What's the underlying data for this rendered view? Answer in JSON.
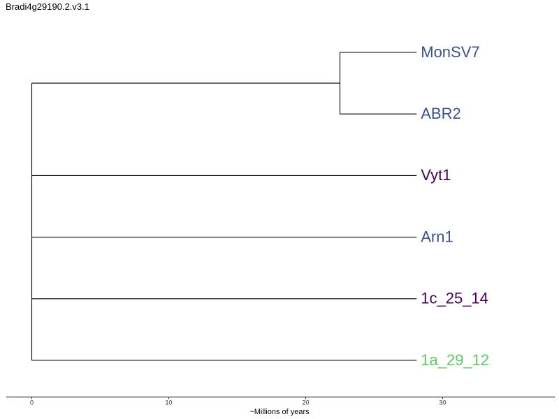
{
  "title": "Bradi4g29190.2.v3.1",
  "colors": {
    "blue": "#3b528b",
    "purple": "#440154",
    "green": "#5ec962",
    "branch": "#000000"
  },
  "chart_data": {
    "type": "dendrogram",
    "xlabel": "~Millions of years",
    "xlim": [
      0,
      38
    ],
    "xticks": [
      0,
      10,
      20,
      30
    ],
    "tips": [
      {
        "name": "MonSV7",
        "depth": 28.1,
        "color": "#3b528b"
      },
      {
        "name": "ABR2",
        "depth": 28.1,
        "color": "#3b528b"
      },
      {
        "name": "Vyt1",
        "depth": 28.1,
        "color": "#440154"
      },
      {
        "name": "Arn1",
        "depth": 28.1,
        "color": "#3b528b"
      },
      {
        "name": "1c_25_14",
        "depth": 28.1,
        "color": "#440154"
      },
      {
        "name": "1a_29_12",
        "depth": 28.1,
        "color": "#5ec962"
      }
    ],
    "nodes": [
      {
        "id": "n_mon_abr",
        "depth": 22.5,
        "children": [
          "MonSV7",
          "ABR2"
        ]
      },
      {
        "id": "root",
        "depth": 0.0,
        "children": [
          "n_mon_abr",
          "Vyt1",
          "Arn1",
          "1c_25_14",
          "1a_29_12"
        ]
      }
    ]
  }
}
